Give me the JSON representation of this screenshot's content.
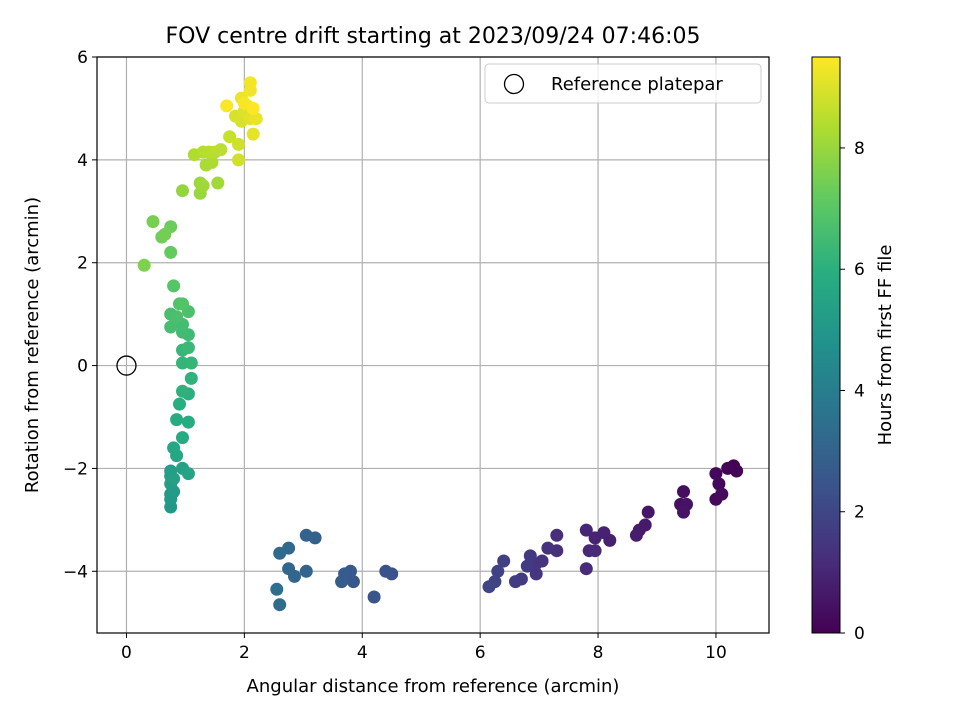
{
  "chart_data": {
    "type": "scatter",
    "title": "FOV centre drift starting at 2023/09/24 07:46:05",
    "xlabel": "Angular distance from reference (arcmin)",
    "ylabel": "Rotation from reference (arcmin)",
    "xlim": [
      -0.5,
      10.9
    ],
    "ylim": [
      -5.2,
      6.0
    ],
    "xticks": [
      0,
      2,
      4,
      6,
      8,
      10
    ],
    "yticks": [
      -4,
      -2,
      0,
      2,
      4,
      6
    ],
    "grid": true,
    "legend": {
      "position": "upper-right",
      "entries": [
        "Reference platepar"
      ]
    },
    "reference_point": {
      "x": 0,
      "y": 0,
      "label": "Reference platepar"
    },
    "colorbar": {
      "label": "Hours from first FF file",
      "colormap": "viridis",
      "range": [
        0,
        9.5
      ],
      "ticks": [
        0,
        2,
        4,
        6,
        8
      ]
    },
    "points": [
      [
        10.3,
        -1.95,
        0.0
      ],
      [
        10.35,
        -2.05,
        0.05
      ],
      [
        10.2,
        -2.0,
        0.1
      ],
      [
        10.0,
        -2.1,
        0.15
      ],
      [
        10.05,
        -2.3,
        0.2
      ],
      [
        10.0,
        -2.6,
        0.25
      ],
      [
        10.1,
        -2.5,
        0.3
      ],
      [
        9.45,
        -2.45,
        0.35
      ],
      [
        9.4,
        -2.7,
        0.4
      ],
      [
        9.5,
        -2.7,
        0.45
      ],
      [
        9.45,
        -2.85,
        0.5
      ],
      [
        8.85,
        -2.85,
        0.6
      ],
      [
        8.8,
        -3.1,
        0.65
      ],
      [
        8.7,
        -3.2,
        0.7
      ],
      [
        8.65,
        -3.3,
        0.75
      ],
      [
        8.2,
        -3.4,
        0.85
      ],
      [
        8.1,
        -3.25,
        0.9
      ],
      [
        7.95,
        -3.35,
        0.95
      ],
      [
        7.8,
        -3.2,
        1.0
      ],
      [
        7.85,
        -3.6,
        1.05
      ],
      [
        7.95,
        -3.6,
        1.1
      ],
      [
        7.8,
        -3.95,
        1.15
      ],
      [
        7.3,
        -3.3,
        1.25
      ],
      [
        7.3,
        -3.6,
        1.3
      ],
      [
        7.15,
        -3.55,
        1.35
      ],
      [
        7.05,
        -3.8,
        1.4
      ],
      [
        6.95,
        -3.85,
        1.45
      ],
      [
        6.95,
        -4.05,
        1.5
      ],
      [
        6.85,
        -3.7,
        1.55
      ],
      [
        6.8,
        -3.9,
        1.6
      ],
      [
        6.7,
        -4.15,
        1.65
      ],
      [
        6.6,
        -4.2,
        1.7
      ],
      [
        6.4,
        -3.8,
        1.8
      ],
      [
        6.3,
        -4.0,
        1.85
      ],
      [
        6.25,
        -4.2,
        1.9
      ],
      [
        6.15,
        -4.3,
        1.95
      ],
      [
        4.5,
        -4.05,
        2.4
      ],
      [
        4.4,
        -4.0,
        2.45
      ],
      [
        4.2,
        -4.5,
        2.5
      ],
      [
        3.85,
        -4.2,
        2.6
      ],
      [
        3.8,
        -4.0,
        2.65
      ],
      [
        3.7,
        -4.05,
        2.7
      ],
      [
        3.65,
        -4.2,
        2.75
      ],
      [
        3.2,
        -3.35,
        2.95
      ],
      [
        3.05,
        -3.3,
        3.0
      ],
      [
        3.05,
        -4.0,
        3.05
      ],
      [
        2.85,
        -4.1,
        3.1
      ],
      [
        2.75,
        -3.95,
        3.15
      ],
      [
        2.75,
        -3.55,
        3.2
      ],
      [
        2.6,
        -3.65,
        3.25
      ],
      [
        2.6,
        -4.65,
        3.35
      ],
      [
        2.55,
        -4.35,
        3.4
      ],
      [
        0.75,
        -2.5,
        5.0
      ],
      [
        0.75,
        -2.75,
        5.05
      ],
      [
        0.75,
        -2.6,
        5.1
      ],
      [
        0.8,
        -2.45,
        5.15
      ],
      [
        0.75,
        -2.3,
        5.2
      ],
      [
        0.75,
        -2.15,
        5.25
      ],
      [
        0.75,
        -2.05,
        5.3
      ],
      [
        0.8,
        -2.2,
        5.35
      ],
      [
        0.95,
        -2.0,
        5.45
      ],
      [
        1.05,
        -2.1,
        5.5
      ],
      [
        0.85,
        -1.75,
        5.6
      ],
      [
        0.8,
        -1.6,
        5.65
      ],
      [
        0.95,
        -1.4,
        5.75
      ],
      [
        1.05,
        -1.1,
        5.8
      ],
      [
        0.85,
        -1.05,
        5.85
      ],
      [
        0.9,
        -0.75,
        5.95
      ],
      [
        1.05,
        -0.55,
        6.0
      ],
      [
        0.95,
        -0.5,
        6.05
      ],
      [
        1.1,
        -0.25,
        6.1
      ],
      [
        0.95,
        0.05,
        6.2
      ],
      [
        1.1,
        0.05,
        6.25
      ],
      [
        0.95,
        0.3,
        6.3
      ],
      [
        1.05,
        0.35,
        6.35
      ],
      [
        1.05,
        0.6,
        6.45
      ],
      [
        0.95,
        0.65,
        6.5
      ],
      [
        0.95,
        0.8,
        6.55
      ],
      [
        0.75,
        0.75,
        6.6
      ],
      [
        0.75,
        1.0,
        6.65
      ],
      [
        0.85,
        0.95,
        6.7
      ],
      [
        1.05,
        1.05,
        6.75
      ],
      [
        0.9,
        1.2,
        6.8
      ],
      [
        0.95,
        1.2,
        6.85
      ],
      [
        0.8,
        1.55,
        6.95
      ],
      [
        0.75,
        2.2,
        7.2
      ],
      [
        0.75,
        2.7,
        7.3
      ],
      [
        0.6,
        2.5,
        7.4
      ],
      [
        0.65,
        2.55,
        7.45
      ],
      [
        0.45,
        2.8,
        7.5
      ],
      [
        0.3,
        1.95,
        7.6
      ],
      [
        0.95,
        3.4,
        7.9
      ],
      [
        1.25,
        3.35,
        8.0
      ],
      [
        1.25,
        3.55,
        8.05
      ],
      [
        1.3,
        3.5,
        8.1
      ],
      [
        1.55,
        3.55,
        8.15
      ],
      [
        1.35,
        3.9,
        8.25
      ],
      [
        1.45,
        3.95,
        8.3
      ],
      [
        1.15,
        4.1,
        8.35
      ],
      [
        1.3,
        4.15,
        8.4
      ],
      [
        1.4,
        4.15,
        8.45
      ],
      [
        1.5,
        4.15,
        8.5
      ],
      [
        1.6,
        4.2,
        8.55
      ],
      [
        1.75,
        4.45,
        8.7
      ],
      [
        1.9,
        4.3,
        8.8
      ],
      [
        1.9,
        4.0,
        8.85
      ],
      [
        1.85,
        4.85,
        8.9
      ],
      [
        1.95,
        4.75,
        8.95
      ],
      [
        2.0,
        4.95,
        9.0
      ],
      [
        2.05,
        5.05,
        9.05
      ],
      [
        2.1,
        4.8,
        9.1
      ],
      [
        2.15,
        4.5,
        9.15
      ],
      [
        2.2,
        4.8,
        9.2
      ],
      [
        1.95,
        5.2,
        9.25
      ],
      [
        2.1,
        5.35,
        9.3
      ],
      [
        2.1,
        5.5,
        9.35
      ],
      [
        2.0,
        5.1,
        9.4
      ],
      [
        1.7,
        5.05,
        9.45
      ],
      [
        2.15,
        5.0,
        9.5
      ]
    ]
  }
}
